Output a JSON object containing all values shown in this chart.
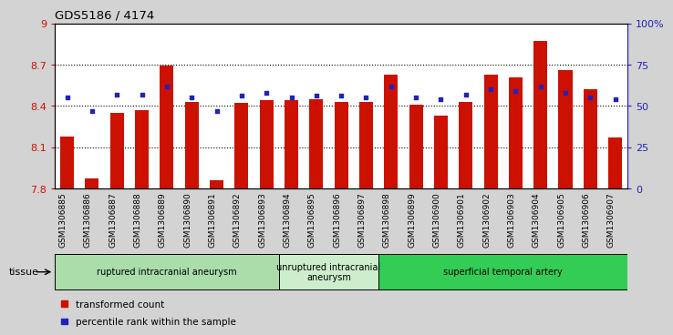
{
  "title": "GDS5186 / 4174",
  "samples": [
    "GSM1306885",
    "GSM1306886",
    "GSM1306887",
    "GSM1306888",
    "GSM1306889",
    "GSM1306890",
    "GSM1306891",
    "GSM1306892",
    "GSM1306893",
    "GSM1306894",
    "GSM1306895",
    "GSM1306896",
    "GSM1306897",
    "GSM1306898",
    "GSM1306899",
    "GSM1306900",
    "GSM1306901",
    "GSM1306902",
    "GSM1306903",
    "GSM1306904",
    "GSM1306905",
    "GSM1306906",
    "GSM1306907"
  ],
  "bar_values": [
    8.18,
    7.87,
    8.35,
    8.37,
    8.69,
    8.43,
    7.86,
    8.42,
    8.44,
    8.44,
    8.45,
    8.43,
    8.43,
    8.63,
    8.41,
    8.33,
    8.43,
    8.63,
    8.61,
    8.87,
    8.66,
    8.52,
    8.17
  ],
  "percentile_values": [
    55,
    47,
    57,
    57,
    62,
    55,
    47,
    56,
    58,
    55,
    56,
    56,
    55,
    62,
    55,
    54,
    57,
    60,
    59,
    62,
    58,
    55,
    54
  ],
  "bar_color": "#cc1100",
  "dot_color": "#2222bb",
  "bg_color": "#d3d3d3",
  "plot_bg": "#ffffff",
  "ylim_left": [
    7.8,
    9.0
  ],
  "ylim_right": [
    0,
    100
  ],
  "yticks_left": [
    7.8,
    8.1,
    8.4,
    8.7,
    9.0
  ],
  "ytick_labels_left": [
    "7.8",
    "8.1",
    "8.4",
    "8.7",
    "9"
  ],
  "yticks_right": [
    0,
    25,
    50,
    75,
    100
  ],
  "ytick_labels_right": [
    "0",
    "25",
    "50",
    "75",
    "100%"
  ],
  "groups": [
    {
      "label": "ruptured intracranial aneurysm",
      "start": 0,
      "end": 9,
      "color": "#aaddaa"
    },
    {
      "label": "unruptured intracranial\naneurysm",
      "start": 9,
      "end": 13,
      "color": "#cceecc"
    },
    {
      "label": "superficial temporal artery",
      "start": 13,
      "end": 23,
      "color": "#33cc55"
    }
  ],
  "tissue_label": "tissue",
  "legend_bar_label": "transformed count",
  "legend_dot_label": "percentile rank within the sample",
  "dotted_lines": [
    8.1,
    8.4,
    8.7
  ]
}
